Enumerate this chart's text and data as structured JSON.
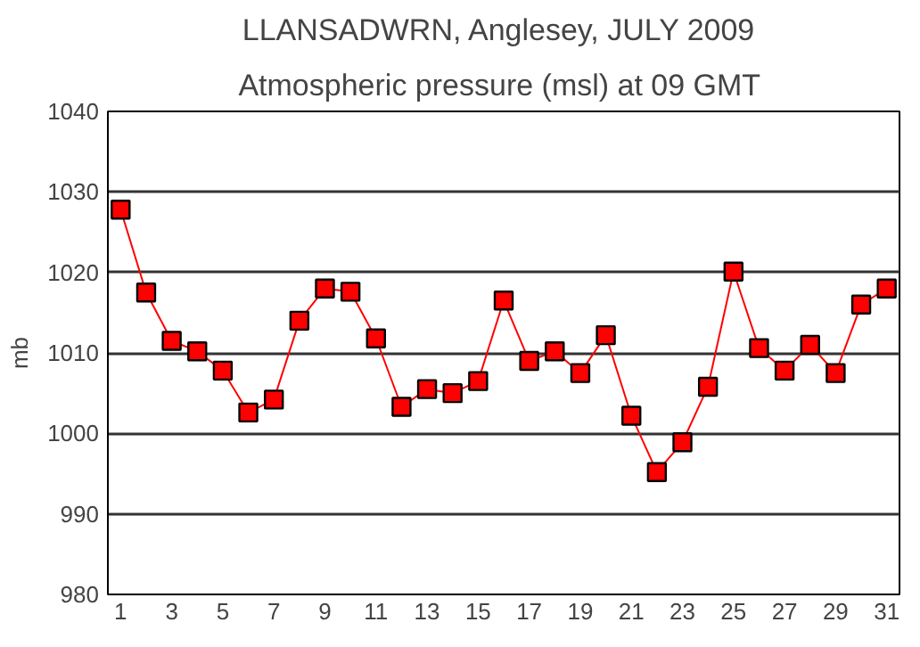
{
  "chart_data": {
    "type": "line",
    "title": "LLANSADWRN, Anglesey,  JULY 2009",
    "subtitle": "Atmospheric pressure  (msl) at 09 GMT",
    "ylabel": "mb",
    "x": [
      1,
      2,
      3,
      4,
      5,
      6,
      7,
      8,
      9,
      10,
      11,
      12,
      13,
      14,
      15,
      16,
      17,
      18,
      19,
      20,
      21,
      22,
      23,
      24,
      25,
      26,
      27,
      28,
      29,
      30,
      31
    ],
    "series": [
      {
        "color": "#ff0000",
        "values": [
          1027.8,
          1017.5,
          1011.5,
          1010.2,
          1007.8,
          1002.6,
          1004.2,
          1014,
          1018,
          1017.6,
          1011.8,
          1003.3,
          1005.5,
          1005,
          1006.5,
          1016.5,
          1009,
          1010.2,
          1007.5,
          1012.2,
          1002.2,
          995.2,
          998.9,
          1005.8,
          1020.1,
          1010.6,
          1007.8,
          1011,
          1007.5,
          1016,
          1018
        ]
      }
    ],
    "xlim": [
      0.5,
      31.5
    ],
    "xticks": [
      1,
      3,
      5,
      7,
      9,
      11,
      13,
      15,
      17,
      19,
      21,
      23,
      25,
      27,
      29,
      31
    ],
    "ylim": [
      980,
      1040
    ],
    "yticks": [
      980,
      990,
      1000,
      1010,
      1020,
      1030,
      1040
    ],
    "grid": "y",
    "marker": "square",
    "line_style": "solid"
  }
}
